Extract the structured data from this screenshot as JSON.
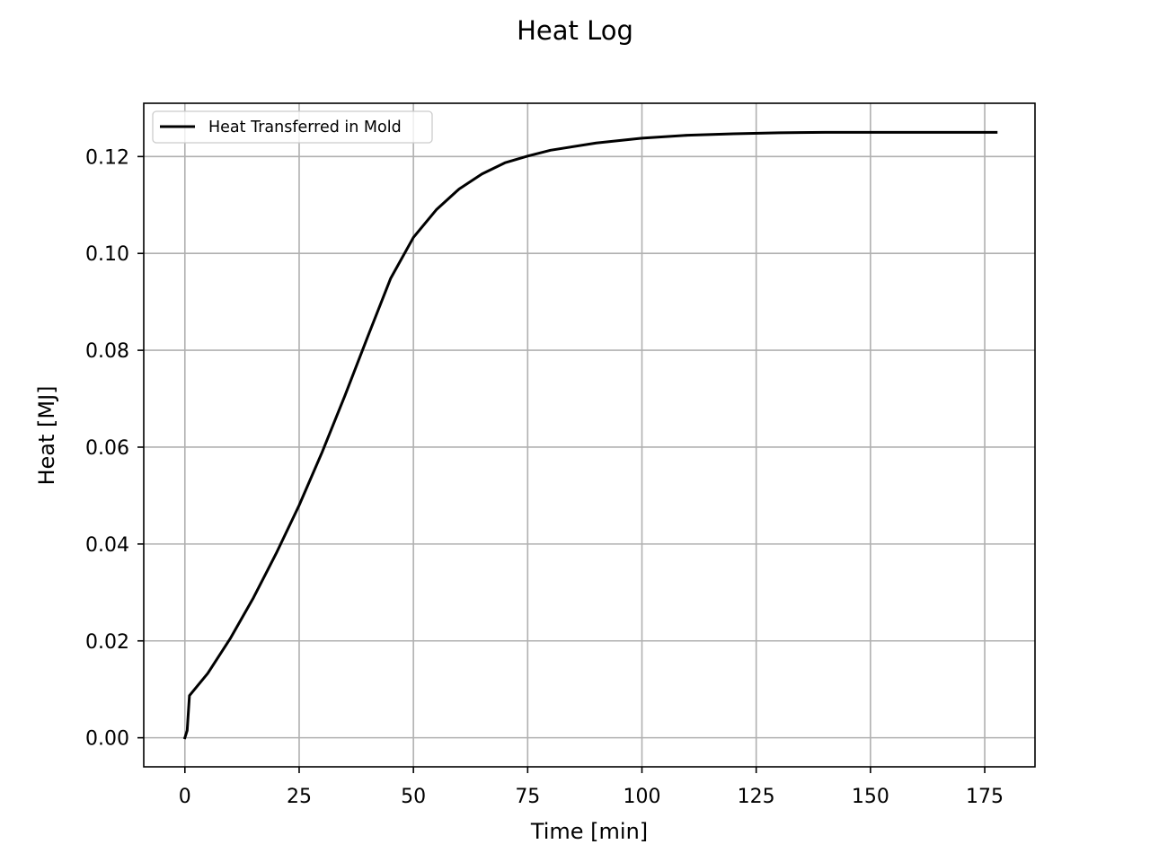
{
  "chart_data": {
    "type": "line",
    "title": "Heat Log",
    "xlabel": "Time [min]",
    "ylabel": "Heat [MJ]",
    "xlim": [
      -9,
      186
    ],
    "ylim": [
      -0.006,
      0.131
    ],
    "xticks": [
      0,
      25,
      50,
      75,
      100,
      125,
      150,
      175
    ],
    "xtick_labels": [
      "0",
      "25",
      "50",
      "75",
      "100",
      "125",
      "150",
      "175"
    ],
    "yticks": [
      0.0,
      0.02,
      0.04,
      0.06,
      0.08,
      0.1,
      0.12
    ],
    "ytick_labels": [
      "0.00",
      "0.02",
      "0.04",
      "0.06",
      "0.08",
      "0.10",
      "0.12"
    ],
    "grid": true,
    "legend_position": "upper-left",
    "series": [
      {
        "name": "Heat Transferred in Mold",
        "color": "#000000",
        "x": [
          0,
          0.5,
          1,
          5,
          10,
          15,
          20,
          25,
          30,
          35,
          40,
          45,
          50,
          55,
          60,
          65,
          70,
          75,
          80,
          90,
          100,
          110,
          120,
          130,
          140,
          150,
          160,
          170,
          177.5
        ],
        "y": [
          0.0,
          0.0015,
          0.0087,
          0.0133,
          0.0206,
          0.0289,
          0.0381,
          0.048,
          0.0589,
          0.0706,
          0.0828,
          0.0948,
          0.1033,
          0.109,
          0.1133,
          0.1164,
          0.1187,
          0.1201,
          0.1213,
          0.1228,
          0.1238,
          0.1244,
          0.1247,
          0.1249,
          0.125,
          0.125,
          0.125,
          0.125,
          0.125
        ]
      }
    ]
  }
}
